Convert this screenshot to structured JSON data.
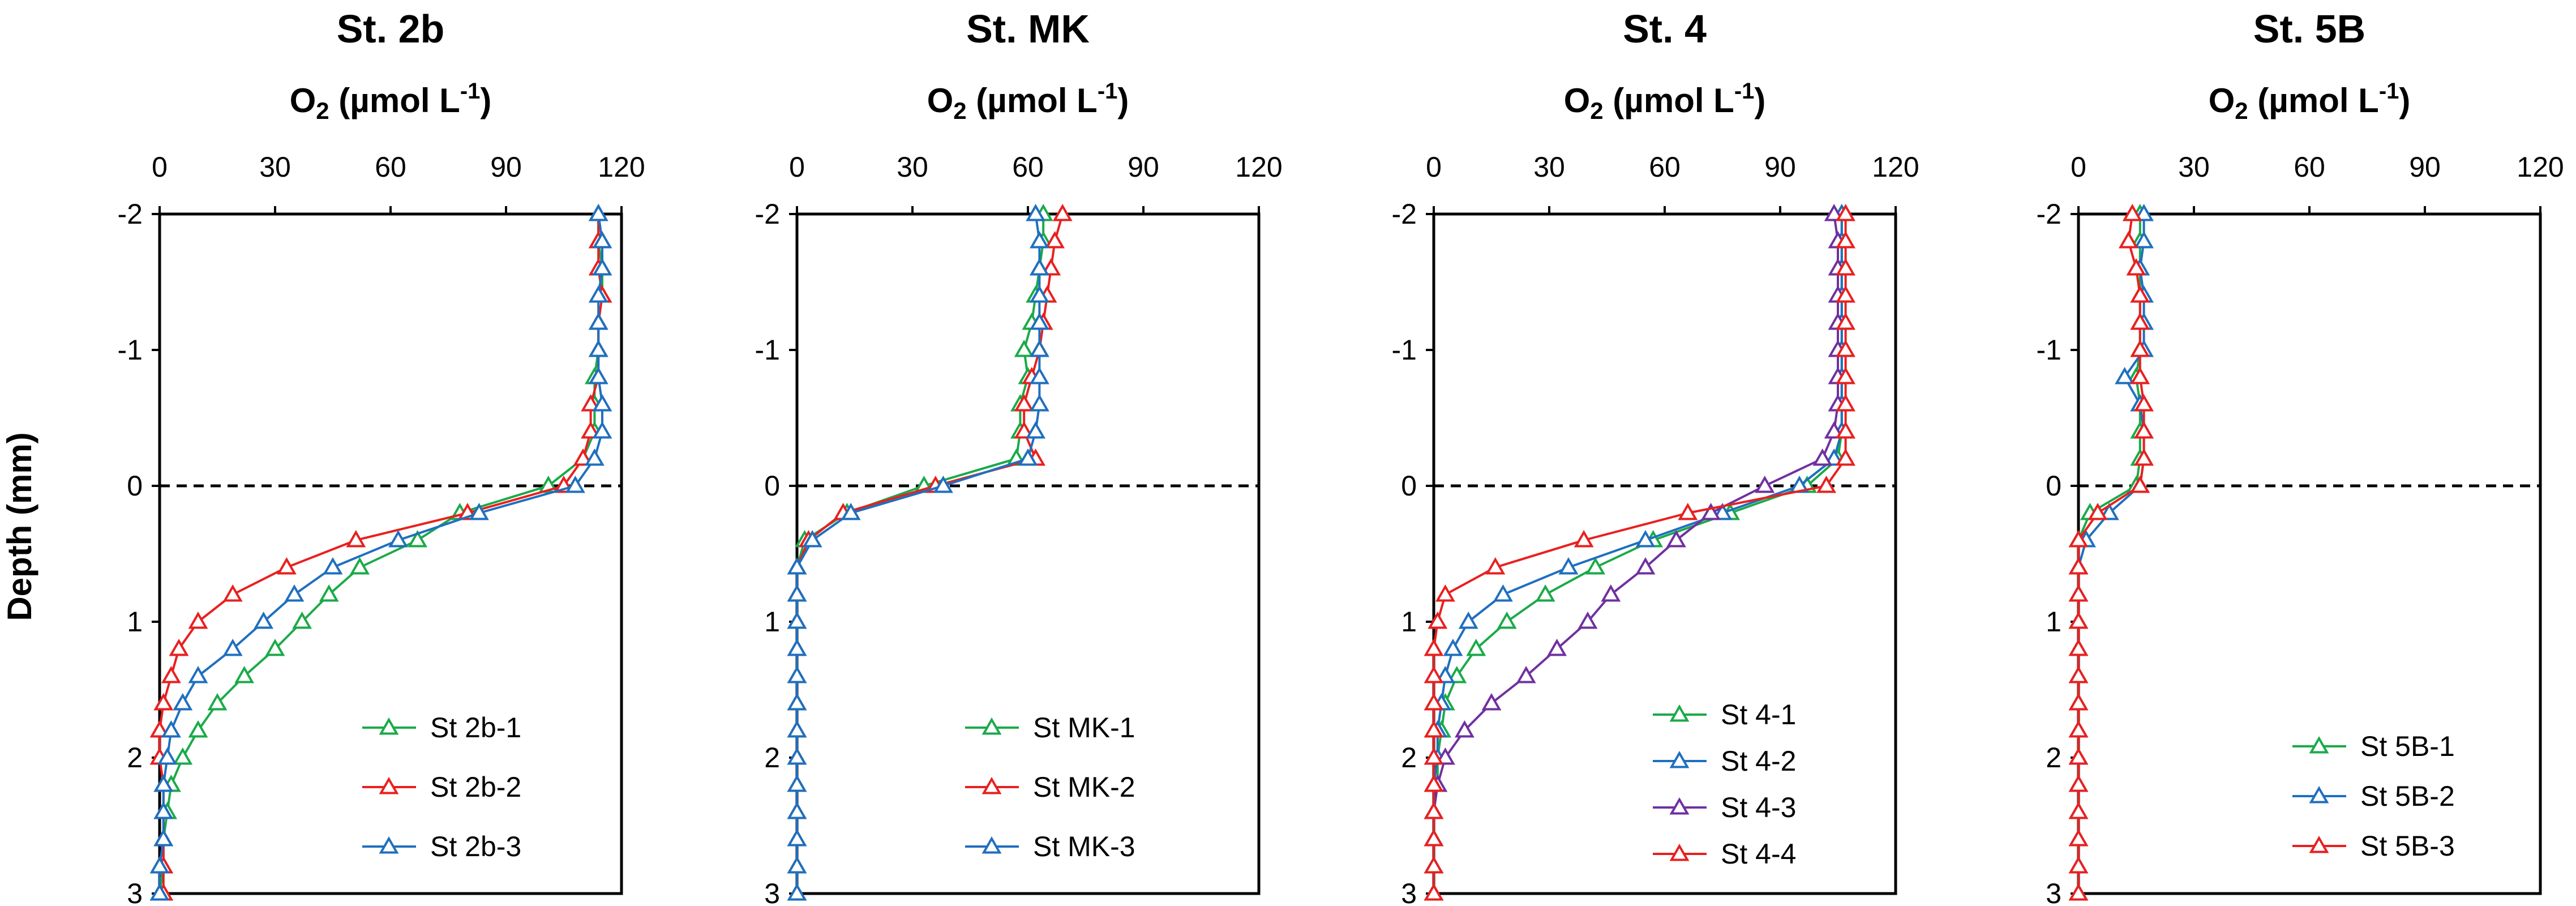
{
  "figure": {
    "y_axis_label": "Depth (mm)",
    "x_axis_label": {
      "main": "O",
      "sub": "2",
      "open": " (µmol L",
      "sup": "-1",
      "close": ")"
    }
  },
  "series_colors": {
    "green": "#1aaa48",
    "red": "#e8201f",
    "blue": "#1f6fbf",
    "purple": "#7030a0"
  },
  "chart_data": [
    {
      "type": "line",
      "title": "St. 2b",
      "xlabel": "O2 (µmol L-1)",
      "ylabel": "Depth (mm)",
      "xlim": [
        0,
        120
      ],
      "ylim": [
        -2,
        3
      ],
      "y_inverted": true,
      "x_ticks": [
        0,
        30,
        60,
        90,
        120
      ],
      "y_ticks": [
        -2,
        -1,
        0,
        1,
        2,
        3
      ],
      "marker": "open-triangle",
      "reference_line": {
        "y": 0,
        "style": "dashed"
      },
      "legend_position": "bottom-right",
      "series": [
        {
          "name": "St 2b-1",
          "color": "green",
          "depth": [
            -2,
            -1.8,
            -1.6,
            -1.4,
            -1.2,
            -1,
            -0.8,
            -0.6,
            -0.4,
            -0.2,
            0,
            0.2,
            0.4,
            0.6,
            0.8,
            1,
            1.2,
            1.4,
            1.6,
            1.8,
            2,
            2.2,
            2.4,
            2.6,
            2.8,
            3
          ],
          "o2": [
            114,
            114,
            115,
            115,
            114,
            114,
            113,
            113,
            113,
            110,
            101,
            78,
            67,
            52,
            44,
            37,
            30,
            22,
            15,
            10,
            6,
            3,
            2,
            1,
            1,
            0
          ]
        },
        {
          "name": "St 2b-2",
          "color": "red",
          "depth": [
            -2,
            -1.8,
            -1.6,
            -1.4,
            -1.2,
            -1,
            -0.8,
            -0.6,
            -0.4,
            -0.2,
            0,
            0.2,
            0.4,
            0.6,
            0.8,
            1,
            1.2,
            1.4,
            1.6,
            1.8,
            2,
            2.2,
            2.4,
            2.6,
            2.8,
            3
          ],
          "o2": [
            114,
            114,
            114,
            115,
            114,
            114,
            114,
            112,
            112,
            110,
            105,
            80,
            51,
            33,
            19,
            10,
            5,
            3,
            1,
            0,
            0,
            1,
            1,
            1,
            1,
            1
          ]
        },
        {
          "name": "St 2b-3",
          "color": "blue",
          "depth": [
            -2,
            -1.8,
            -1.6,
            -1.4,
            -1.2,
            -1,
            -0.8,
            -0.6,
            -0.4,
            -0.2,
            0,
            0.2,
            0.4,
            0.6,
            0.8,
            1,
            1.2,
            1.4,
            1.6,
            1.8,
            2,
            2.2,
            2.4,
            2.6,
            2.8,
            3
          ],
          "o2": [
            114,
            115,
            115,
            114,
            114,
            114,
            114,
            115,
            115,
            113,
            108,
            83,
            62,
            45,
            35,
            27,
            19,
            10,
            6,
            3,
            2,
            1,
            1,
            1,
            0,
            0
          ]
        }
      ]
    },
    {
      "type": "line",
      "title": "St. MK",
      "xlabel": "O2 (µmol L-1)",
      "ylabel": "Depth (mm)",
      "xlim": [
        0,
        120
      ],
      "ylim": [
        -2,
        3
      ],
      "y_inverted": true,
      "x_ticks": [
        0,
        30,
        60,
        90,
        120
      ],
      "y_ticks": [
        -2,
        -1,
        0,
        1,
        2,
        3
      ],
      "marker": "open-triangle",
      "reference_line": {
        "y": 0,
        "style": "dashed"
      },
      "legend_position": "bottom-right",
      "series": [
        {
          "name": "St MK-1",
          "color": "green",
          "depth": [
            -2,
            -1.8,
            -1.6,
            -1.4,
            -1.2,
            -1,
            -0.8,
            -0.6,
            -0.4,
            -0.2,
            0,
            0.2,
            0.4,
            0.6,
            0.8,
            1,
            1.2,
            1.4,
            1.6,
            1.8,
            2,
            2.2,
            2.4,
            2.6,
            2.8,
            3
          ],
          "o2": [
            64,
            64,
            63,
            62,
            61,
            59,
            60,
            58,
            58,
            57,
            33,
            13,
            2,
            0,
            0,
            0,
            0,
            0,
            0,
            0,
            0,
            0,
            0,
            0,
            0,
            0
          ]
        },
        {
          "name": "St MK-2",
          "color": "red",
          "depth": [
            -2,
            -1.8,
            -1.6,
            -1.4,
            -1.2,
            -1,
            -0.8,
            -0.6,
            -0.4,
            -0.2,
            0,
            0.2,
            0.4,
            0.6,
            0.8,
            1,
            1.2,
            1.4,
            1.6,
            1.8,
            2,
            2.2,
            2.4,
            2.6,
            2.8,
            3
          ],
          "o2": [
            69,
            67,
            66,
            65,
            64,
            63,
            61,
            59,
            59,
            62,
            36,
            12,
            3,
            0,
            0,
            0,
            0,
            0,
            0,
            0,
            0,
            0,
            0,
            0,
            0,
            0
          ]
        },
        {
          "name": "St MK-3",
          "color": "blue",
          "depth": [
            -2,
            -1.8,
            -1.6,
            -1.4,
            -1.2,
            -1,
            -0.8,
            -0.6,
            -0.4,
            -0.2,
            0,
            0.2,
            0.4,
            0.6,
            0.8,
            1,
            1.2,
            1.4,
            1.6,
            1.8,
            2,
            2.2,
            2.4,
            2.6,
            2.8,
            3
          ],
          "o2": [
            62,
            63,
            63,
            63,
            63,
            63,
            63,
            63,
            62,
            60,
            38,
            14,
            4,
            0,
            0,
            0,
            0,
            0,
            0,
            0,
            0,
            0,
            0,
            0,
            0,
            0
          ]
        }
      ]
    },
    {
      "type": "line",
      "title": "St. 4",
      "xlabel": "O2 (µmol L-1)",
      "ylabel": "Depth (mm)",
      "xlim": [
        0,
        120
      ],
      "ylim": [
        -2,
        3
      ],
      "y_inverted": true,
      "x_ticks": [
        0,
        30,
        60,
        90,
        120
      ],
      "y_ticks": [
        -2,
        -1,
        0,
        1,
        2,
        3
      ],
      "marker": "open-triangle",
      "reference_line": {
        "y": 0,
        "style": "dashed"
      },
      "legend_position": "bottom-right",
      "series": [
        {
          "name": "St 4-1",
          "color": "green",
          "depth": [
            -2,
            -1.8,
            -1.6,
            -1.4,
            -1.2,
            -1,
            -0.8,
            -0.6,
            -0.4,
            -0.2,
            0,
            0.2,
            0.4,
            0.6,
            0.8,
            1,
            1.2,
            1.4,
            1.6,
            1.8,
            2,
            2.2,
            2.4,
            2.6,
            2.8,
            3
          ],
          "o2": [
            106,
            106,
            106,
            106,
            106,
            106,
            106,
            106,
            106,
            105,
            97,
            77,
            57,
            42,
            29,
            19,
            11,
            6,
            3,
            2,
            1,
            1,
            0,
            0,
            0,
            0
          ]
        },
        {
          "name": "St 4-2",
          "color": "blue",
          "depth": [
            -2,
            -1.8,
            -1.6,
            -1.4,
            -1.2,
            -1,
            -0.8,
            -0.6,
            -0.4,
            -0.2,
            0,
            0.2,
            0.4,
            0.6,
            0.8,
            1,
            1.2,
            1.4,
            1.6,
            1.8,
            2,
            2.2,
            2.4,
            2.6,
            2.8,
            3
          ],
          "o2": [
            106,
            106,
            106,
            106,
            106,
            106,
            106,
            106,
            106,
            104,
            95,
            75,
            55,
            35,
            18,
            9,
            5,
            3,
            2,
            1,
            1,
            0,
            0,
            0,
            0,
            0
          ]
        },
        {
          "name": "St 4-3",
          "color": "purple",
          "depth": [
            -2,
            -1.8,
            -1.6,
            -1.4,
            -1.2,
            -1,
            -0.8,
            -0.6,
            -0.4,
            -0.2,
            0,
            0.2,
            0.4,
            0.6,
            0.8,
            1,
            1.2,
            1.4,
            1.6,
            1.8,
            2,
            2.2,
            2.4,
            2.6,
            2.8,
            3
          ],
          "o2": [
            104,
            105,
            105,
            105,
            105,
            105,
            105,
            105,
            104,
            101,
            86,
            72,
            63,
            55,
            46,
            40,
            32,
            24,
            15,
            8,
            3,
            1,
            0,
            0,
            0,
            0
          ]
        },
        {
          "name": "St 4-4",
          "color": "red",
          "depth": [
            -2,
            -1.8,
            -1.6,
            -1.4,
            -1.2,
            -1,
            -0.8,
            -0.6,
            -0.4,
            -0.2,
            0,
            0.2,
            0.4,
            0.6,
            0.8,
            1,
            1.2,
            1.4,
            1.6,
            1.8,
            2,
            2.2,
            2.4,
            2.6,
            2.8,
            3
          ],
          "o2": [
            107,
            107,
            107,
            107,
            107,
            107,
            107,
            107,
            107,
            107,
            102,
            66,
            39,
            16,
            3,
            1,
            0,
            0,
            0,
            0,
            0,
            0,
            0,
            0,
            0,
            0
          ]
        }
      ]
    },
    {
      "type": "line",
      "title": "St. 5B",
      "xlabel": "O2 (µmol L-1)",
      "ylabel": "Depth (mm)",
      "xlim": [
        0,
        120
      ],
      "ylim": [
        -2,
        3
      ],
      "y_inverted": true,
      "x_ticks": [
        0,
        30,
        60,
        90,
        120
      ],
      "y_ticks": [
        -2,
        -1,
        0,
        1,
        2,
        3
      ],
      "marker": "open-triangle",
      "reference_line": {
        "y": 0,
        "style": "dashed"
      },
      "legend_position": "bottom-right",
      "series": [
        {
          "name": "St 5B-1",
          "color": "green",
          "depth": [
            -2,
            -1.8,
            -1.6,
            -1.4,
            -1.2,
            -1,
            -0.8,
            -0.6,
            -0.4,
            -0.2,
            0,
            0.2,
            0.4,
            0.6,
            1,
            1.6,
            2,
            3
          ],
          "o2": [
            16,
            16,
            16,
            16,
            16,
            16,
            15,
            16,
            16,
            16,
            15,
            3,
            0,
            0,
            0,
            0,
            0,
            0
          ]
        },
        {
          "name": "St 5B-2",
          "color": "blue",
          "depth": [
            -2,
            -1.8,
            -1.6,
            -1.4,
            -1.2,
            -1,
            -0.8,
            -0.6,
            -0.4,
            -0.2,
            0,
            0.2,
            0.4,
            0.6,
            0.8,
            1,
            1.2,
            1.4,
            1.6,
            1.8,
            2,
            2.2,
            2.4,
            2.6,
            2.8,
            3
          ],
          "o2": [
            17,
            17,
            16,
            17,
            17,
            17,
            12,
            16,
            17,
            17,
            16,
            8,
            2,
            0,
            0,
            0,
            0,
            0,
            0,
            0,
            0,
            0,
            0,
            0,
            0,
            0
          ]
        },
        {
          "name": "St 5B-3",
          "color": "red",
          "depth": [
            -2,
            -1.8,
            -1.6,
            -1.4,
            -1.2,
            -1,
            -0.8,
            -0.6,
            -0.4,
            -0.2,
            0,
            0.2,
            0.4,
            0.6,
            0.8,
            1,
            1.2,
            1.4,
            1.6,
            1.8,
            2,
            2.2,
            2.4,
            2.6,
            2.8,
            3
          ],
          "o2": [
            14,
            13,
            15,
            16,
            16,
            16,
            16,
            17,
            17,
            17,
            16,
            5,
            0,
            0,
            0,
            0,
            0,
            0,
            0,
            0,
            0,
            0,
            0,
            0,
            0,
            0
          ]
        }
      ]
    }
  ]
}
